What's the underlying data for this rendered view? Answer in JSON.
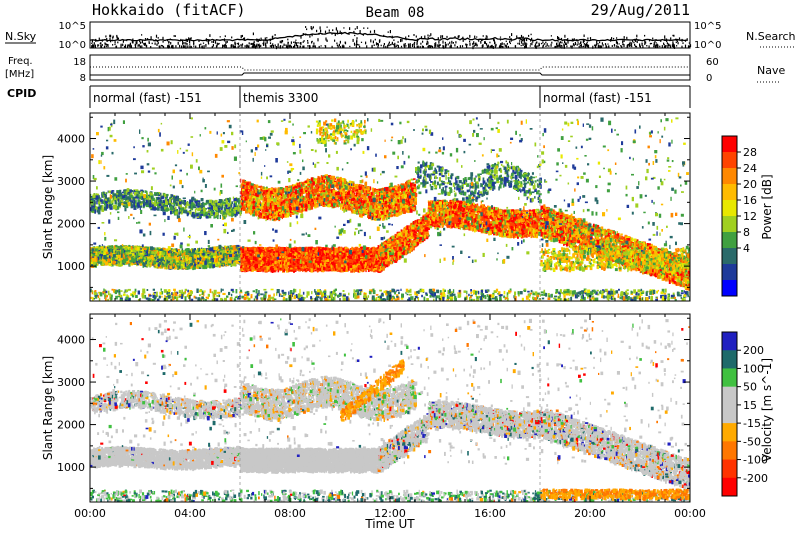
{
  "header": {
    "radar": "Hokkaido (fitACF)",
    "beam": "Beam 08",
    "date": "29/Aug/2011"
  },
  "top_panels": {
    "nsky_label": "N.Sky",
    "nsky_ticks": [
      "10^5",
      "10^0"
    ],
    "nsky_right_ticks": [
      "10^5",
      "10^0"
    ],
    "nsearch_label": "N.Search",
    "freq_label": "Freq.",
    "freq_unit": "[MHz]",
    "freq_ticks": [
      "18",
      "8"
    ],
    "nave_ticks": [
      "60",
      "0"
    ],
    "nave_label": "Nave",
    "cpid_label": "CPID"
  },
  "cpid_segments": [
    {
      "label": "normal (fast) -151",
      "start_h": 0,
      "end_h": 6
    },
    {
      "label": "themis 3300",
      "start_h": 6,
      "end_h": 18
    },
    {
      "label": "normal (fast) -151",
      "start_h": 18,
      "end_h": 24
    }
  ],
  "chart_data": [
    {
      "type": "heatmap",
      "panel": "power",
      "ylabel": "Slant Range [km]",
      "ylim": [
        180,
        4600
      ],
      "yticks": [
        1000,
        2000,
        3000,
        4000
      ],
      "xlim": [
        0,
        24
      ],
      "colorbar": {
        "label": "Power [dB]",
        "ticks": [
          "28",
          "24",
          "20",
          "16",
          "12",
          "8",
          "4"
        ],
        "range": [
          0,
          32
        ],
        "colors": [
          "#ff0000",
          "#ff4400",
          "#ff8800",
          "#ffbb00",
          "#e8e800",
          "#a0d020",
          "#40a040",
          "#2a6a6a",
          "#1e3a9a",
          "#0000ff"
        ]
      }
    },
    {
      "type": "heatmap",
      "panel": "velocity",
      "ylabel": "Slant Range [km]",
      "ylim": [
        180,
        4600
      ],
      "yticks": [
        1000,
        2000,
        3000,
        4000
      ],
      "xlim": [
        0,
        24
      ],
      "colorbar": {
        "label": "Velocity [m s^-1]",
        "ticks": [
          "200",
          "100",
          "50",
          "15",
          "-15",
          "-50",
          "-100",
          "-200"
        ],
        "colors": [
          "#2020c0",
          "#1e6a6a",
          "#40c040",
          "#c8c8c8",
          "#c8c8c8",
          "#ffaa00",
          "#ff7700",
          "#ff3300",
          "#ff0000"
        ]
      }
    }
  ],
  "xaxis": {
    "label": "Time UT",
    "ticks": [
      "00:00",
      "04:00",
      "08:00",
      "12:00",
      "16:00",
      "20:00",
      "00:00"
    ]
  }
}
